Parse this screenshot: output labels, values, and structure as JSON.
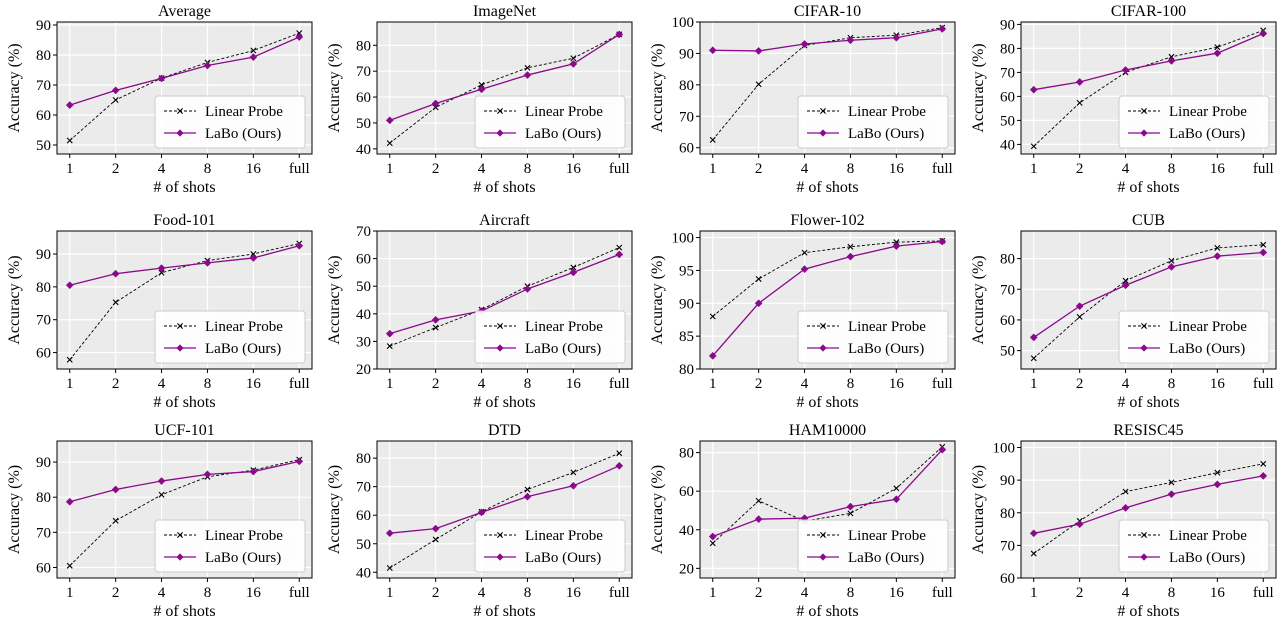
{
  "figure": {
    "shared_x_categories": [
      "1",
      "2",
      "4",
      "8",
      "16",
      "full"
    ],
    "xlabel": "# of shots",
    "ylabel": "Accuracy (%)",
    "legend_labels": [
      "Linear Probe",
      "LaBo (Ours)"
    ],
    "colors": {
      "linear_probe": "#000000",
      "labo": "#8b0a8b",
      "panel_bg": "#ebebeb",
      "grid": "#ffffff"
    }
  },
  "chart_data": [
    {
      "type": "line",
      "title": "Average",
      "xlabel": "# of shots",
      "ylabel": "Accuracy (%)",
      "categories": [
        "1",
        "2",
        "4",
        "8",
        "16",
        "full"
      ],
      "ylim": [
        47,
        91
      ],
      "yticks": [
        50,
        60,
        70,
        80,
        90
      ],
      "grid": true,
      "legend": "lower-right",
      "series": [
        {
          "name": "Linear Probe",
          "values": [
            51.5,
            65,
            72.3,
            77.5,
            81.5,
            87.3
          ]
        },
        {
          "name": "LaBo (Ours)",
          "values": [
            63.3,
            68.2,
            72.2,
            76.5,
            79.3,
            86
          ]
        }
      ]
    },
    {
      "type": "line",
      "title": "ImageNet",
      "xlabel": "# of shots",
      "ylabel": "Accuracy (%)",
      "categories": [
        "1",
        "2",
        "4",
        "8",
        "16",
        "full"
      ],
      "ylim": [
        38,
        89
      ],
      "yticks": [
        40,
        50,
        60,
        70,
        80
      ],
      "grid": true,
      "legend": "lower-right",
      "series": [
        {
          "name": "Linear Probe",
          "values": [
            42.2,
            56,
            64.7,
            71.3,
            75,
            84.2
          ]
        },
        {
          "name": "LaBo (Ours)",
          "values": [
            51,
            57.5,
            63,
            68.5,
            72.8,
            84.2
          ]
        }
      ]
    },
    {
      "type": "line",
      "title": "CIFAR-10",
      "xlabel": "# of shots",
      "ylabel": "Accuracy (%)",
      "categories": [
        "1",
        "2",
        "4",
        "8",
        "16",
        "full"
      ],
      "ylim": [
        58,
        100
      ],
      "yticks": [
        60,
        70,
        80,
        90,
        100
      ],
      "grid": true,
      "legend": "lower-right",
      "series": [
        {
          "name": "Linear Probe",
          "values": [
            62.5,
            80.2,
            92.5,
            95,
            95.8,
            98.2
          ]
        },
        {
          "name": "LaBo (Ours)",
          "values": [
            91,
            90.8,
            93,
            94.2,
            95,
            97.8
          ]
        }
      ]
    },
    {
      "type": "line",
      "title": "CIFAR-100",
      "xlabel": "# of shots",
      "ylabel": "Accuracy (%)",
      "categories": [
        "1",
        "2",
        "4",
        "8",
        "16",
        "full"
      ],
      "ylim": [
        36,
        91
      ],
      "yticks": [
        40,
        50,
        60,
        70,
        80,
        90
      ],
      "grid": true,
      "legend": "lower-right",
      "series": [
        {
          "name": "Linear Probe",
          "values": [
            39.2,
            57.3,
            70,
            76.5,
            80.5,
            87.5
          ]
        },
        {
          "name": "LaBo (Ours)",
          "values": [
            62.8,
            66,
            71,
            74.8,
            78,
            86.2
          ]
        }
      ]
    },
    {
      "type": "line",
      "title": "Food-101",
      "xlabel": "# of shots",
      "ylabel": "Accuracy (%)",
      "categories": [
        "1",
        "2",
        "4",
        "8",
        "16",
        "full"
      ],
      "ylim": [
        55,
        97
      ],
      "yticks": [
        60,
        70,
        80,
        90
      ],
      "grid": true,
      "legend": "lower-right",
      "series": [
        {
          "name": "Linear Probe",
          "values": [
            57.8,
            75.3,
            84.3,
            88,
            90,
            93.2
          ]
        },
        {
          "name": "LaBo (Ours)",
          "values": [
            80.5,
            84,
            85.7,
            87.3,
            88.8,
            92.5
          ]
        }
      ]
    },
    {
      "type": "line",
      "title": "Aircraft",
      "xlabel": "# of shots",
      "ylabel": "Accuracy (%)",
      "categories": [
        "1",
        "2",
        "4",
        "8",
        "16",
        "full"
      ],
      "ylim": [
        20,
        70
      ],
      "yticks": [
        20,
        30,
        40,
        50,
        60,
        70
      ],
      "grid": true,
      "legend": "lower-right",
      "series": [
        {
          "name": "Linear Probe",
          "values": [
            28.3,
            35,
            41.5,
            50,
            56.8,
            64
          ]
        },
        {
          "name": "LaBo (Ours)",
          "values": [
            32.8,
            37.8,
            41,
            49,
            55,
            61.5
          ]
        }
      ]
    },
    {
      "type": "line",
      "title": "Flower-102",
      "xlabel": "# of shots",
      "ylabel": "Accuracy (%)",
      "categories": [
        "1",
        "2",
        "4",
        "8",
        "16",
        "full"
      ],
      "ylim": [
        80,
        101
      ],
      "yticks": [
        80,
        85,
        90,
        95,
        100
      ],
      "grid": true,
      "legend": "lower-right",
      "series": [
        {
          "name": "Linear Probe",
          "values": [
            88,
            93.7,
            97.7,
            98.6,
            99.3,
            99.5
          ]
        },
        {
          "name": "LaBo (Ours)",
          "values": [
            82,
            90,
            95.2,
            97.1,
            98.7,
            99.4
          ]
        }
      ]
    },
    {
      "type": "line",
      "title": "CUB",
      "xlabel": "# of shots",
      "ylabel": "Accuracy (%)",
      "categories": [
        "1",
        "2",
        "4",
        "8",
        "16",
        "full"
      ],
      "ylim": [
        44,
        89
      ],
      "yticks": [
        50,
        60,
        70,
        80
      ],
      "grid": true,
      "legend": "lower-right",
      "series": [
        {
          "name": "Linear Probe",
          "values": [
            47.5,
            61,
            72.8,
            79.3,
            83.5,
            84.5
          ]
        },
        {
          "name": "LaBo (Ours)",
          "values": [
            54.3,
            64.5,
            71.3,
            77.3,
            80.8,
            82
          ]
        }
      ]
    },
    {
      "type": "line",
      "title": "UCF-101",
      "xlabel": "# of shots",
      "ylabel": "Accuracy (%)",
      "categories": [
        "1",
        "2",
        "4",
        "8",
        "16",
        "full"
      ],
      "ylim": [
        57,
        96
      ],
      "yticks": [
        60,
        70,
        80,
        90
      ],
      "grid": true,
      "legend": "lower-right",
      "series": [
        {
          "name": "Linear Probe",
          "values": [
            60.5,
            73.3,
            80.7,
            85.8,
            87.7,
            90.7
          ]
        },
        {
          "name": "LaBo (Ours)",
          "values": [
            78.7,
            82.2,
            84.6,
            86.5,
            87.3,
            90.2
          ]
        }
      ]
    },
    {
      "type": "line",
      "title": "DTD",
      "xlabel": "# of shots",
      "ylabel": "Accuracy (%)",
      "categories": [
        "1",
        "2",
        "4",
        "8",
        "16",
        "full"
      ],
      "ylim": [
        38,
        86
      ],
      "yticks": [
        40,
        50,
        60,
        70,
        80
      ],
      "grid": true,
      "legend": "lower-right",
      "series": [
        {
          "name": "Linear Probe",
          "values": [
            41.5,
            51.5,
            61.2,
            69,
            75,
            81.7
          ]
        },
        {
          "name": "LaBo (Ours)",
          "values": [
            53.7,
            55.3,
            61,
            66.5,
            70.3,
            77.3
          ]
        }
      ]
    },
    {
      "type": "line",
      "title": "HAM10000",
      "xlabel": "# of shots",
      "ylabel": "Accuracy (%)",
      "categories": [
        "1",
        "2",
        "4",
        "8",
        "16",
        "full"
      ],
      "ylim": [
        15,
        86
      ],
      "yticks": [
        20,
        40,
        60,
        80
      ],
      "grid": true,
      "legend": "lower-right",
      "series": [
        {
          "name": "Linear Probe",
          "values": [
            33,
            55,
            44.5,
            48.5,
            61.5,
            83
          ]
        },
        {
          "name": "LaBo (Ours)",
          "values": [
            36.5,
            45.5,
            46,
            52,
            55.8,
            81.5
          ]
        }
      ]
    },
    {
      "type": "line",
      "title": "RESISC45",
      "xlabel": "# of shots",
      "ylabel": "Accuracy (%)",
      "categories": [
        "1",
        "2",
        "4",
        "8",
        "16",
        "full"
      ],
      "ylim": [
        60,
        102
      ],
      "yticks": [
        60,
        70,
        80,
        90,
        100
      ],
      "grid": true,
      "legend": "lower-right",
      "series": [
        {
          "name": "Linear Probe",
          "values": [
            67.5,
            77.5,
            86.5,
            89.3,
            92.3,
            95
          ]
        },
        {
          "name": "LaBo (Ours)",
          "values": [
            73.7,
            76.5,
            81.5,
            85.7,
            88.7,
            91.3
          ]
        }
      ]
    }
  ]
}
